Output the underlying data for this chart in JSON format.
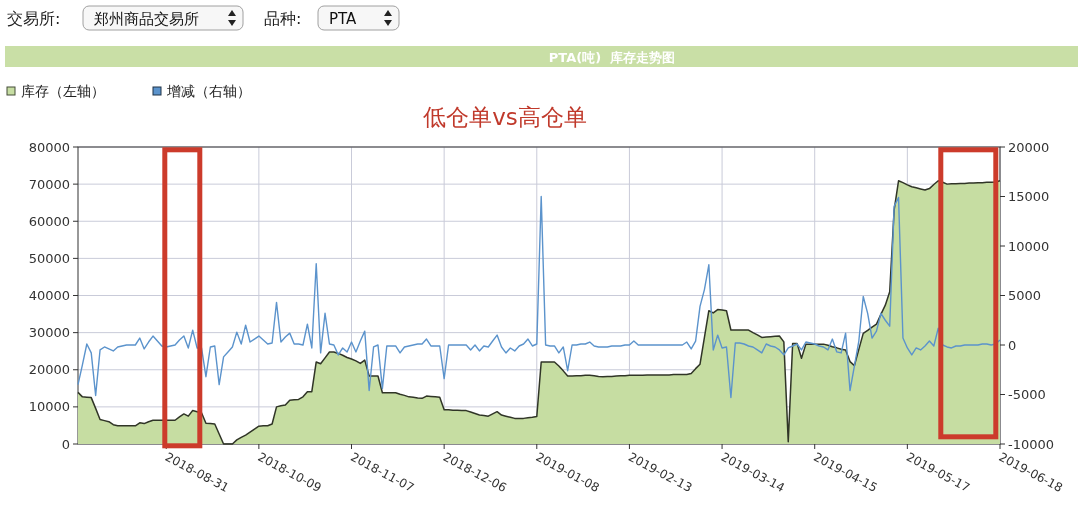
{
  "chart_data": {
    "type": "area",
    "title": "PTA(吨)  库存走势图",
    "subtitle": "低仓单vs高仓单",
    "annotations": [
      "交易所:",
      "郑州商品交易所",
      "品种:",
      "PTA"
    ],
    "categories": [
      null,
      null,
      null,
      null,
      null,
      null,
      null,
      null,
      null,
      null,
      null,
      null,
      null,
      null,
      null,
      null,
      null,
      null,
      null,
      null,
      "2018-08-31",
      null,
      null,
      null,
      null,
      null,
      null,
      null,
      null,
      null,
      null,
      null,
      null,
      null,
      null,
      null,
      null,
      null,
      null,
      null,
      null,
      "2018-10-09",
      null,
      null,
      null,
      null,
      null,
      null,
      null,
      null,
      null,
      null,
      null,
      null,
      null,
      null,
      null,
      null,
      null,
      null,
      null,
      null,
      "2018-11-07",
      null,
      null,
      null,
      null,
      null,
      null,
      null,
      null,
      null,
      null,
      null,
      null,
      null,
      null,
      null,
      null,
      null,
      null,
      null,
      null,
      "2018-12-06",
      null,
      null,
      null,
      null,
      null,
      null,
      null,
      null,
      null,
      null,
      null,
      null,
      null,
      null,
      null,
      null,
      null,
      null,
      null,
      null,
      "2019-01-08",
      null,
      null,
      null,
      null,
      null,
      null,
      null,
      null,
      null,
      null,
      null,
      null,
      null,
      null,
      null,
      null,
      null,
      null,
      null,
      null,
      "2019-02-13",
      null,
      null,
      null,
      null,
      null,
      null,
      null,
      null,
      null,
      null,
      null,
      null,
      null,
      null,
      null,
      null,
      null,
      null,
      null,
      null,
      "2019-03-14",
      null,
      null,
      null,
      null,
      null,
      null,
      null,
      null,
      null,
      null,
      null,
      null,
      null,
      null,
      null,
      null,
      null,
      null,
      null,
      null,
      "2019-04-15",
      null,
      null,
      null,
      null,
      null,
      null,
      null,
      null,
      null,
      null,
      null,
      null,
      null,
      null,
      null,
      null,
      null,
      null,
      null,
      null,
      "2019-05-17",
      null,
      null,
      null,
      null,
      null,
      null,
      null,
      null,
      null,
      null,
      null,
      null,
      null,
      null,
      null,
      null,
      null,
      null,
      null,
      null,
      "2019-06-18"
    ],
    "ylim": [
      0,
      80000
    ],
    "yticks": [
      0,
      10000,
      20000,
      30000,
      40000,
      50000,
      60000,
      70000,
      80000
    ],
    "y2lim": [
      -10000,
      20000
    ],
    "y2ticks": [
      -10000,
      -5000,
      0,
      5000,
      10000,
      15000,
      20000
    ],
    "grid": true,
    "legend": "top left",
    "series": [
      {
        "name": "库存（左轴）",
        "color": "#c6dda2",
        "values": [
          13900,
          12700,
          12600,
          12500,
          9600,
          6600,
          6300,
          6000,
          5200,
          4900,
          4900,
          4900,
          4900,
          4900,
          5700,
          5500,
          6000,
          6400,
          6400,
          6400,
          6400,
          6400,
          6400,
          7300,
          8100,
          7500,
          9000,
          8700,
          8400,
          5600,
          5500,
          5400,
          2700,
          0,
          0,
          0,
          1100,
          1800,
          2400,
          3200,
          4000,
          4800,
          4900,
          4900,
          5400,
          10000,
          10300,
          10500,
          11800,
          11900,
          12000,
          12700,
          14100,
          14100,
          22100,
          21600,
          23200,
          24800,
          24800,
          24400,
          23900,
          23300,
          22900,
          22400,
          21700,
          22600,
          18300,
          18300,
          18300,
          13800,
          13800,
          13800,
          13800,
          13400,
          13100,
          12700,
          12600,
          12400,
          12300,
          12900,
          12800,
          12700,
          12600,
          9200,
          9200,
          9100,
          9100,
          9000,
          9000,
          8600,
          8200,
          7800,
          7700,
          7500,
          8100,
          8700,
          7800,
          7500,
          7200,
          6900,
          6900,
          6900,
          7100,
          7200,
          7400,
          22100,
          22100,
          22100,
          22100,
          21000,
          19700,
          18300,
          18300,
          18400,
          18400,
          18500,
          18500,
          18400,
          18200,
          18100,
          18200,
          18200,
          18300,
          18400,
          18400,
          18500,
          18500,
          18500,
          18500,
          18600,
          18600,
          18600,
          18600,
          18600,
          18600,
          18700,
          18700,
          18700,
          18700,
          19000,
          20300,
          21500,
          28700,
          35900,
          35300,
          36200,
          36100,
          35900,
          30700,
          30700,
          30700,
          30700,
          30700,
          30000,
          29400,
          28700,
          28800,
          28900,
          29000,
          29100,
          27500,
          600,
          27100,
          27100,
          23100,
          26900,
          26900,
          26900,
          26900,
          26900,
          26600,
          26200,
          25900,
          25500,
          25300,
          22200,
          21100,
          25500,
          29800,
          30600,
          31500,
          32300,
          34900,
          37400,
          41000,
          63000,
          70900,
          70400,
          69800,
          69300,
          69000,
          68700,
          68400,
          68800,
          69900,
          70900,
          70500,
          70000,
          70100,
          70100,
          70200,
          70200,
          70300,
          70300,
          70400,
          70400,
          70500,
          70500,
          70600,
          70900
        ]
      },
      {
        "name": "增减（右轴）",
        "type": "line",
        "axis": "y2",
        "color": "#5b93cc",
        "values": [
          -4000,
          -2000,
          100,
          -800,
          -5100,
          -500,
          -200,
          -400,
          -600,
          -200,
          -100,
          0,
          0,
          0,
          700,
          -400,
          300,
          900,
          400,
          -100,
          -200,
          -100,
          0,
          500,
          900,
          -300,
          1500,
          -300,
          -300,
          -3200,
          -200,
          -100,
          -4000,
          -1200,
          -700,
          -200,
          1300,
          100,
          2000,
          300,
          600,
          900,
          500,
          100,
          200,
          4300,
          300,
          800,
          1200,
          100,
          100,
          0,
          2100,
          -300,
          8200,
          -800,
          3200,
          100,
          0,
          -1000,
          -300,
          -700,
          300,
          -700,
          400,
          1400,
          -4600,
          -200,
          0,
          -4400,
          -100,
          -100,
          -100,
          -800,
          -200,
          -100,
          0,
          100,
          100,
          600,
          -100,
          -100,
          -100,
          -3400,
          0,
          0,
          0,
          0,
          0,
          -500,
          0,
          -600,
          -100,
          -200,
          400,
          1000,
          -200,
          -800,
          -300,
          -600,
          -100,
          100,
          600,
          -100,
          100,
          15000,
          0,
          -100,
          -100,
          -800,
          -200,
          -2600,
          0,
          0,
          100,
          100,
          300,
          -100,
          -200,
          -200,
          -200,
          -100,
          -100,
          -100,
          0,
          0,
          400,
          0,
          0,
          0,
          0,
          0,
          0,
          0,
          0,
          0,
          0,
          0,
          300,
          -400,
          400,
          3900,
          5600,
          8100,
          -500,
          1000,
          -300,
          -200,
          -5300,
          200,
          200,
          100,
          -100,
          -200,
          -500,
          -800,
          100,
          -100,
          -200,
          -500,
          -1000,
          -300,
          -100,
          100,
          -500,
          300,
          200,
          100,
          -100,
          -200,
          -500,
          600,
          -700,
          -800,
          1200,
          -4600,
          -2100,
          400,
          4900,
          3200,
          700,
          1400,
          3200,
          2500,
          1900,
          14000,
          14900,
          700,
          -300,
          -1000,
          -300,
          -500,
          -100,
          400,
          -100,
          1700,
          0,
          -200,
          -300,
          -100,
          -100,
          0,
          0,
          0,
          0,
          100,
          100,
          0,
          100,
          500
        ]
      }
    ]
  }
}
